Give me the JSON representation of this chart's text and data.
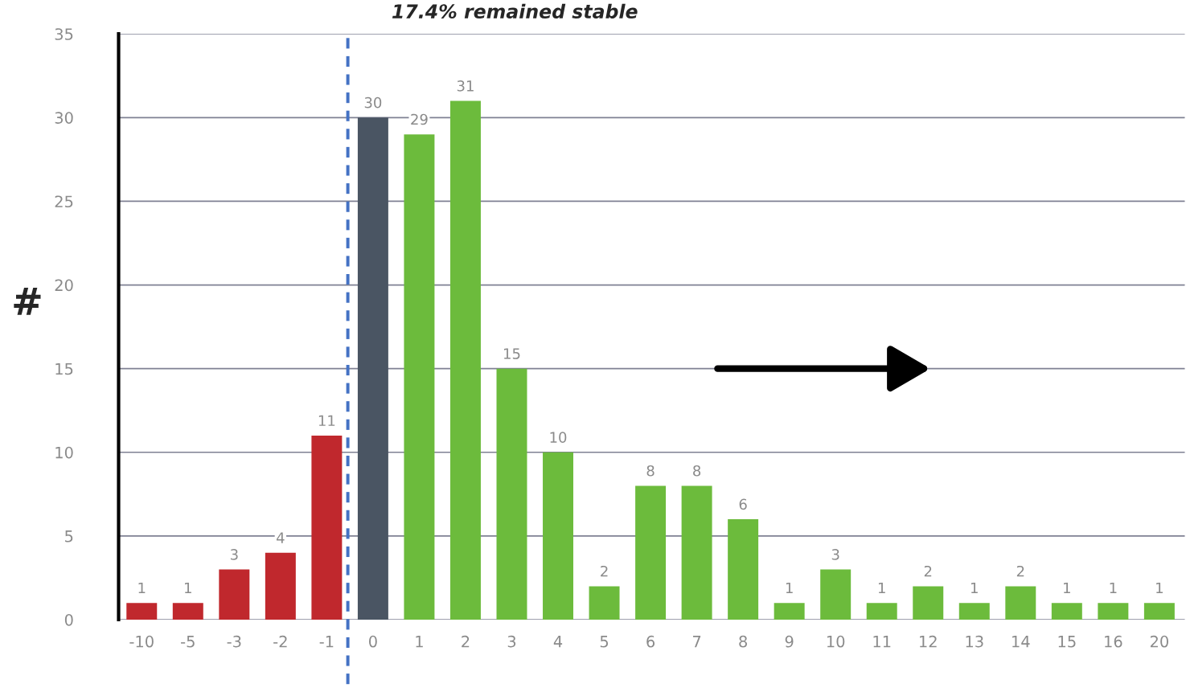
{
  "chart_data": {
    "type": "bar",
    "title": "17.4% remained stable",
    "ylabel": "#",
    "categories": [
      "-10",
      "-5",
      "-3",
      "-2",
      "-1",
      "0",
      "1",
      "2",
      "3",
      "4",
      "5",
      "6",
      "7",
      "8",
      "9",
      "10",
      "11",
      "12",
      "13",
      "14",
      "15",
      "16",
      "20"
    ],
    "values": [
      1,
      1,
      3,
      4,
      11,
      30,
      29,
      31,
      15,
      10,
      2,
      8,
      8,
      6,
      1,
      3,
      1,
      2,
      1,
      2,
      1,
      1,
      1
    ],
    "colors": [
      "#c0282d",
      "#c0282d",
      "#c0282d",
      "#c0282d",
      "#c0282d",
      "#4a5563",
      "#6cbb3c",
      "#6cbb3c",
      "#6cbb3c",
      "#6cbb3c",
      "#6cbb3c",
      "#6cbb3c",
      "#6cbb3c",
      "#6cbb3c",
      "#6cbb3c",
      "#6cbb3c",
      "#6cbb3c",
      "#6cbb3c",
      "#6cbb3c",
      "#6cbb3c",
      "#6cbb3c",
      "#6cbb3c",
      "#6cbb3c"
    ],
    "ylim": [
      0,
      35
    ],
    "yticks": [
      0,
      5,
      10,
      15,
      20,
      25,
      30,
      35
    ],
    "grid": "y",
    "data_labels": true
  }
}
